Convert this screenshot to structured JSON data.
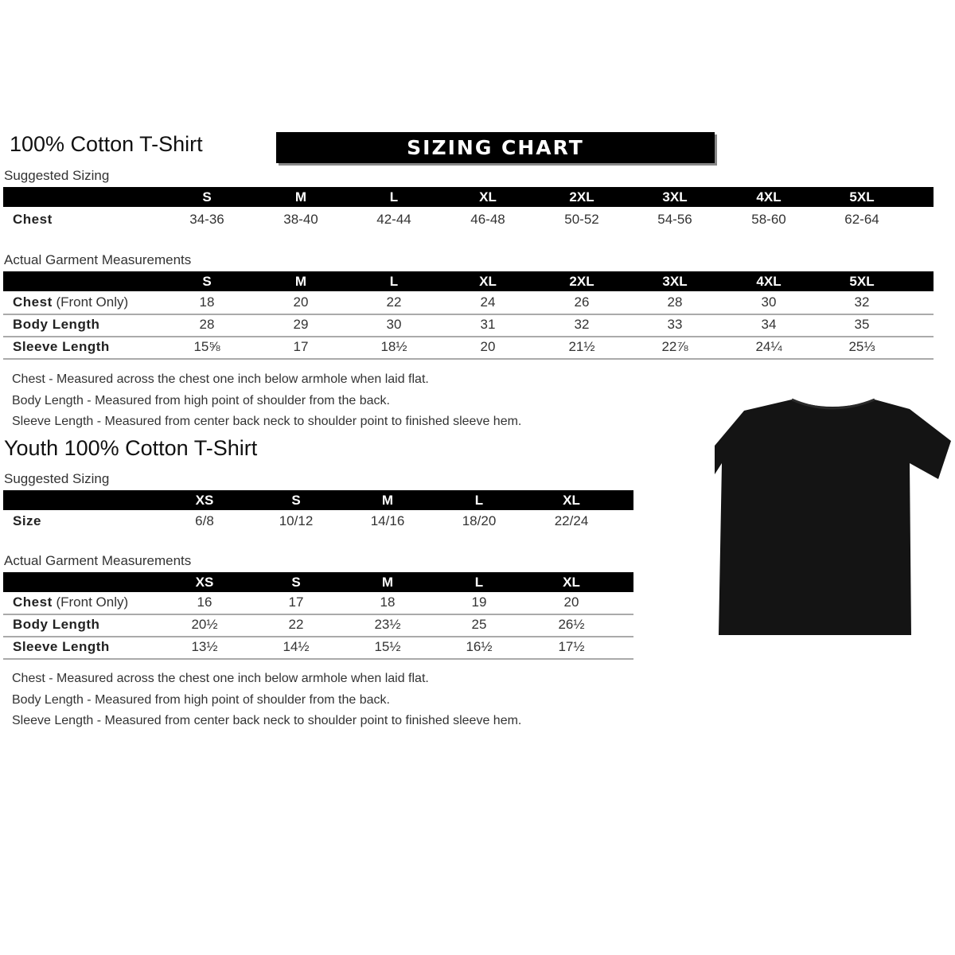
{
  "adult": {
    "title": "100% Cotton T-Shirt",
    "banner": "SIZING CHART",
    "suggested_label": "Suggested Sizing",
    "sizes": [
      "S",
      "M",
      "L",
      "XL",
      "2XL",
      "3XL",
      "4XL",
      "5XL"
    ],
    "suggested_rows": [
      {
        "label": "Chest",
        "values": [
          "34-36",
          "38-40",
          "42-44",
          "46-48",
          "50-52",
          "54-56",
          "58-60",
          "62-64"
        ]
      }
    ],
    "actual_label": "Actual Garment Measurements",
    "actual_rows": [
      {
        "label": "Chest",
        "label_suffix": " (Front Only)",
        "values": [
          "18",
          "20",
          "22",
          "24",
          "26",
          "28",
          "30",
          "32"
        ]
      },
      {
        "label": "Body Length",
        "values": [
          "28",
          "29",
          "30",
          "31",
          "32",
          "33",
          "34",
          "35"
        ]
      },
      {
        "label": "Sleeve Length",
        "values": [
          "15⅝",
          "17",
          "18½",
          "20",
          "21½",
          "22⅞",
          "24¼",
          "25⅓"
        ]
      }
    ],
    "notes": [
      "Chest - Measured across the chest one inch below armhole when laid flat.",
      "Body Length - Measured from high point of shoulder from the back.",
      "Sleeve Length - Measured from center back neck to shoulder point to finished sleeve hem."
    ]
  },
  "youth": {
    "title": "Youth 100% Cotton T-Shirt",
    "suggested_label": "Suggested Sizing",
    "sizes": [
      "XS",
      "S",
      "M",
      "L",
      "XL"
    ],
    "suggested_rows": [
      {
        "label": "Size",
        "values": [
          "6/8",
          "10/12",
          "14/16",
          "18/20",
          "22/24"
        ]
      }
    ],
    "actual_label": "Actual Garment Measurements",
    "actual_rows": [
      {
        "label": "Chest",
        "label_suffix": " (Front Only)",
        "values": [
          "16",
          "17",
          "18",
          "19",
          "20"
        ]
      },
      {
        "label": "Body Length",
        "values": [
          "20½",
          "22",
          "23½",
          "25",
          "26½"
        ]
      },
      {
        "label": "Sleeve Length",
        "values": [
          "13½",
          "14½",
          "15½",
          "16½",
          "17½"
        ]
      }
    ],
    "notes": [
      "Chest - Measured across the chest one inch below armhole when laid flat.",
      "Body Length - Measured from high point of shoulder from the back.",
      "Sleeve Length - Measured from center back neck to shoulder point to finished sleeve hem."
    ]
  },
  "image": {
    "icon": "tshirt-icon",
    "color": "#141414"
  }
}
